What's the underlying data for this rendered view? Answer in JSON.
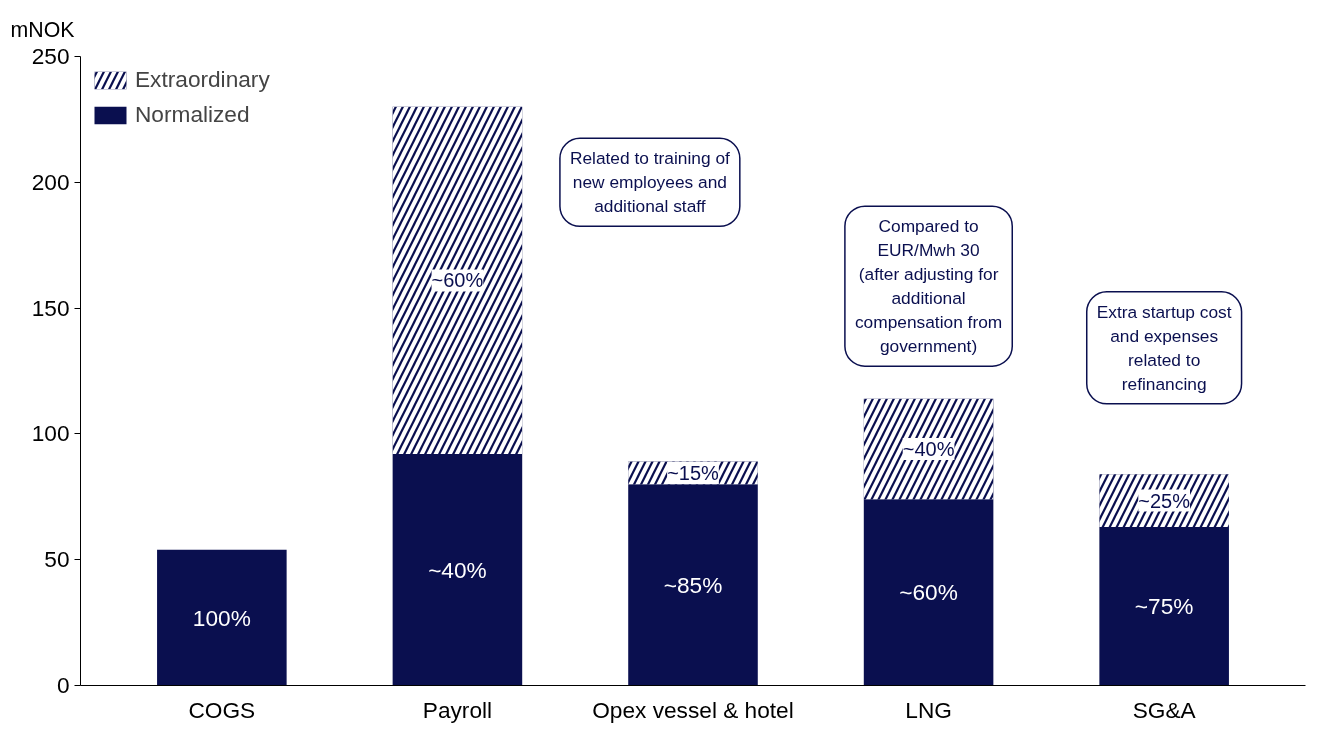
{
  "chart_data": {
    "type": "bar",
    "stacked": true,
    "ylabel": "mNOK",
    "categories": [
      "COGS",
      "Payroll",
      "Opex vessel & hotel",
      "LNG",
      "SG&A"
    ],
    "series": [
      {
        "name": "Normalized",
        "color": "#0a0f4f",
        "values": [
          54,
          92,
          80,
          74,
          63
        ]
      },
      {
        "name": "Extraordinary",
        "color": "#0a0f4f",
        "values": [
          null,
          138,
          9,
          40,
          21
        ]
      }
    ],
    "ylim": [
      0,
      250
    ],
    "yticks": [
      0,
      50,
      100,
      150,
      200,
      250
    ],
    "grid": false,
    "legend": "top left",
    "annotations": [
      "100%",
      "~40%",
      "~85%",
      "~60%",
      "~75%",
      "~60%",
      "~15%",
      "~40%",
      "~25%",
      "Related to training of\nnew employees and\nadditional staff",
      "Compared to\nEUR/Mwh 30\n(after adjusting for\nadditional\ncompensation from\ngovernment)",
      "Extra startup cost\nand expenses\nrelated to\nrefinancing"
    ]
  }
}
